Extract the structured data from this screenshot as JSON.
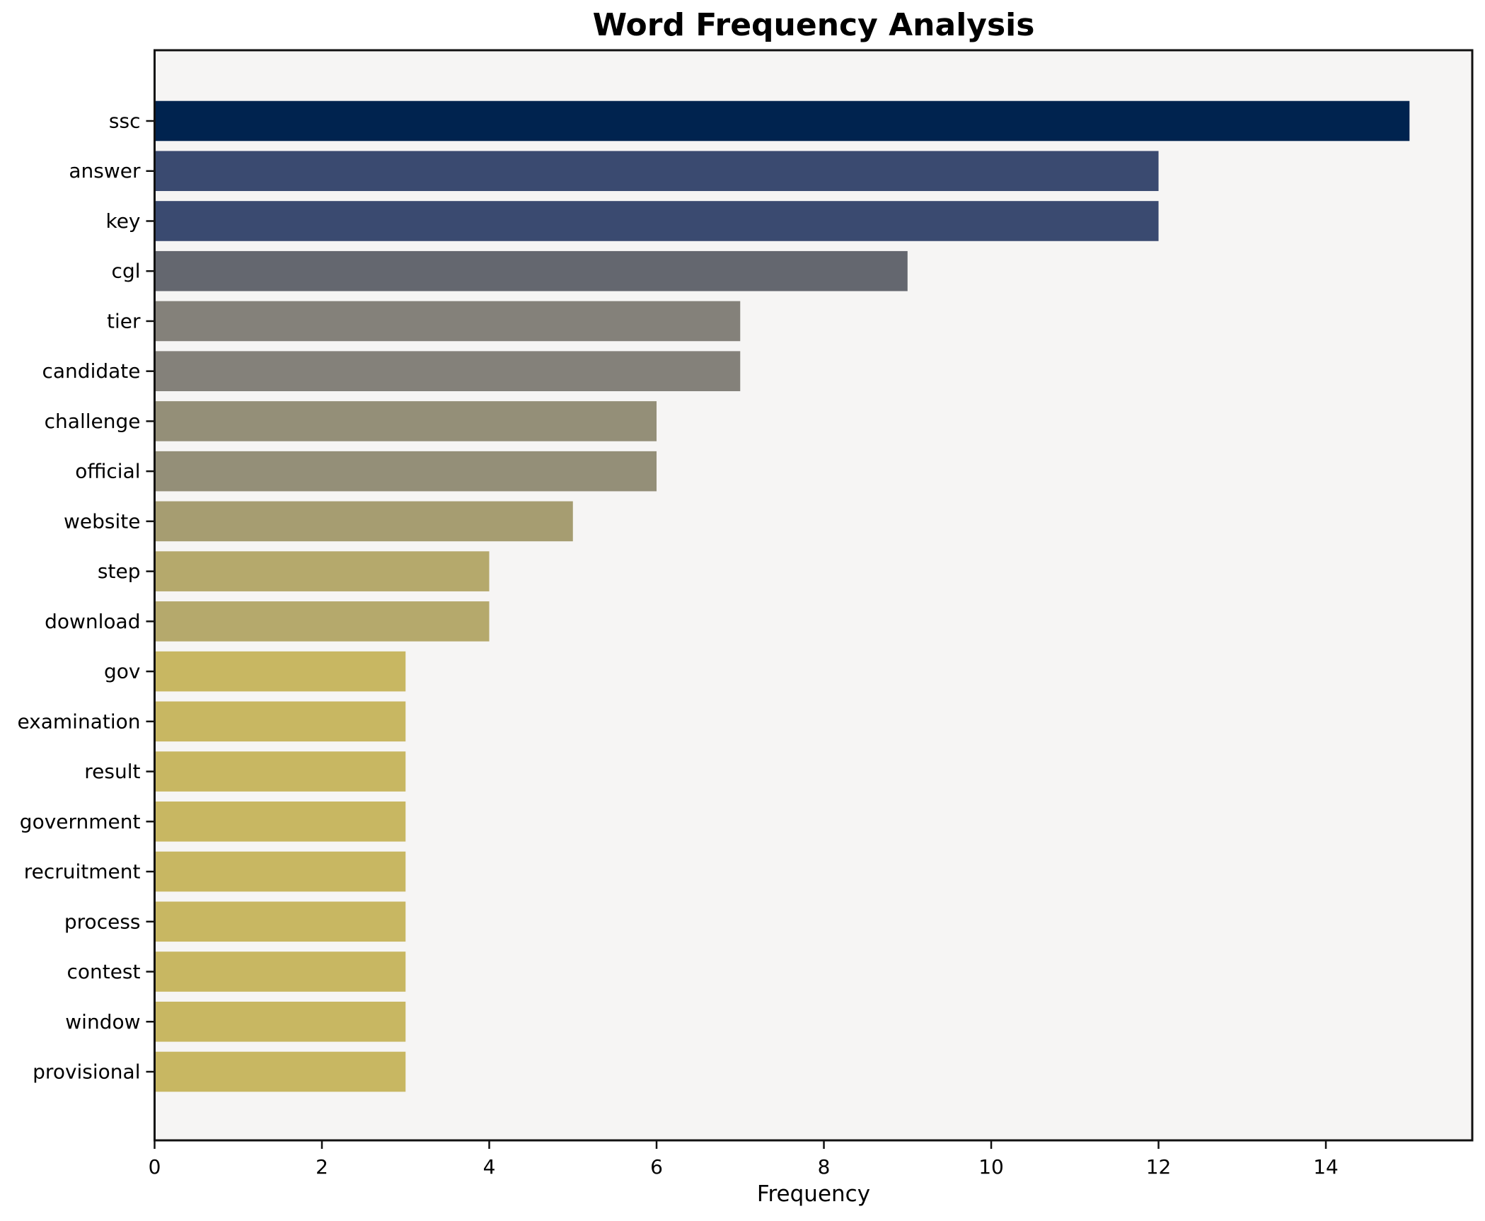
{
  "chart_data": {
    "type": "bar",
    "orientation": "horizontal",
    "title": "Word Frequency Analysis",
    "xlabel": "Frequency",
    "ylabel": "",
    "categories": [
      "ssc",
      "answer",
      "key",
      "cgl",
      "tier",
      "candidate",
      "challenge",
      "official",
      "website",
      "step",
      "download",
      "gov",
      "examination",
      "result",
      "government",
      "recruitment",
      "process",
      "contest",
      "window",
      "provisional"
    ],
    "values": [
      15,
      12,
      12,
      9,
      7,
      7,
      6,
      6,
      5,
      4,
      4,
      3,
      3,
      3,
      3,
      3,
      3,
      3,
      3,
      3
    ],
    "bar_colors": [
      "#00234f",
      "#3a4a70",
      "#3a4a70",
      "#64676f",
      "#84817a",
      "#84817a",
      "#948f78",
      "#948f78",
      "#a69d71",
      "#b5a96c",
      "#b5a96c",
      "#c8b762",
      "#c8b762",
      "#c8b762",
      "#c8b762",
      "#c8b762",
      "#c8b762",
      "#c8b762",
      "#c8b762",
      "#c8b762"
    ],
    "xlim": [
      0,
      15.75
    ],
    "xticks": [
      0,
      2,
      4,
      6,
      8,
      10,
      12,
      14
    ],
    "grid": false,
    "legend_position": "none",
    "plot_background": "#f6f5f4",
    "page_background": "#ffffff",
    "frame_color": "#111111",
    "tick_color": "#111111",
    "text_color": "#000000"
  }
}
